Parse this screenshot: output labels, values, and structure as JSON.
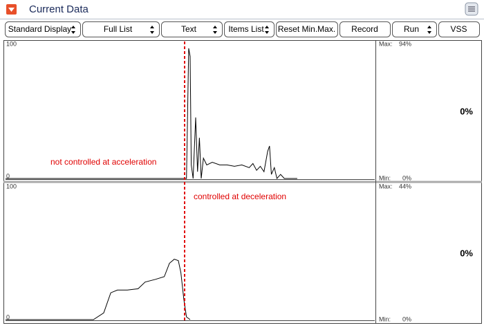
{
  "header": {
    "title": "Current Data"
  },
  "toolbar": {
    "buttons": [
      "Standard Display",
      "Full List",
      "Text",
      "Items List",
      "Reset Min.Max.",
      "Record",
      "Run",
      "VSS"
    ]
  },
  "chart_data": [
    {
      "type": "line",
      "annotation": "not controlled at acceleration",
      "x": [
        0,
        49,
        49.6,
        50.0,
        50.3,
        50.8,
        51.5,
        52,
        52.5,
        53,
        53.6,
        54.5,
        56,
        58,
        60,
        62,
        64,
        66,
        67,
        68,
        69,
        70,
        71,
        71.5,
        72,
        72.8,
        73.5,
        74.5,
        75.5,
        79
      ],
      "values": [
        0,
        0,
        96,
        90,
        10,
        0,
        45,
        5,
        30,
        0,
        15,
        10,
        12,
        10,
        10,
        9,
        10,
        8,
        11,
        6,
        9,
        5,
        20,
        24,
        3,
        8,
        0,
        3,
        0,
        0
      ],
      "color": "#000000",
      "xlim": [
        0,
        100
      ],
      "ylim": [
        0,
        100
      ],
      "yticks": [
        0,
        100
      ],
      "max_label": "Max:",
      "max_value": "94%",
      "min_label": "Min:",
      "min_value": "0%",
      "current_value": "0%"
    },
    {
      "type": "line",
      "annotation": "controlled at deceleration",
      "x": [
        0,
        23.8,
        26.6,
        28.5,
        30.3,
        33,
        35.9,
        37.8,
        40.6,
        43,
        44.4,
        45.7,
        46.8,
        47.5,
        48.3,
        49,
        50
      ],
      "values": [
        0,
        0,
        5,
        20,
        22,
        22,
        23,
        28,
        30,
        32,
        42,
        45,
        44,
        35,
        15,
        2,
        0
      ],
      "color": "#000000",
      "xlim": [
        0,
        100
      ],
      "ylim": [
        0,
        100
      ],
      "yticks": [
        0,
        100
      ],
      "max_label": "Max:",
      "max_value": "44%",
      "min_label": "Min:",
      "min_value": "0%",
      "current_value": "0%"
    }
  ]
}
